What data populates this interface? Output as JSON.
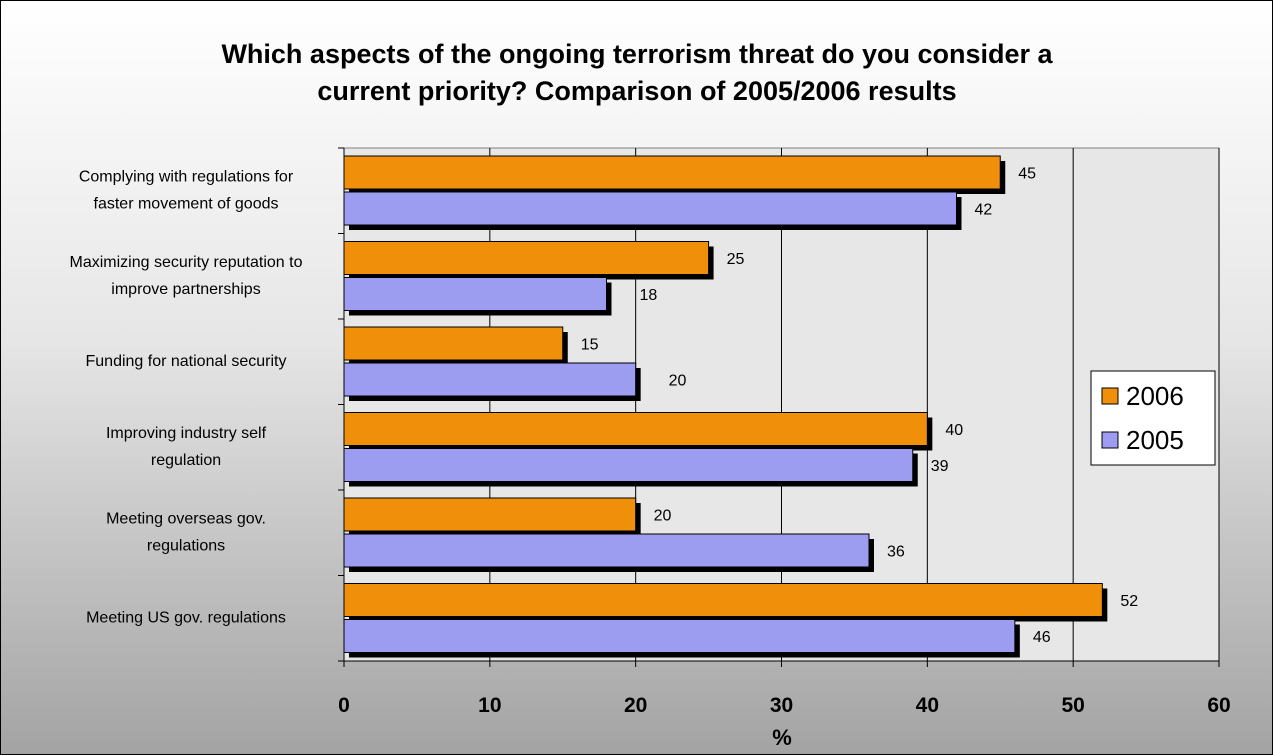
{
  "chart_data": {
    "type": "bar",
    "orientation": "horizontal",
    "title": [
      "Which aspects of the ongoing terrorism threat do you consider a",
      "current priority? Comparison of 2005/2006 results"
    ],
    "categories": [
      [
        "Complying with regulations for",
        "faster movement of goods"
      ],
      [
        "Maximizing security reputation to",
        "improve partnerships"
      ],
      [
        "Funding for national security"
      ],
      [
        "Improving industry self",
        "regulation"
      ],
      [
        "Meeting overseas gov.",
        "regulations"
      ],
      [
        "Meeting US gov. regulations"
      ]
    ],
    "series": [
      {
        "name": "2006",
        "values": [
          45,
          25,
          15,
          40,
          20,
          52
        ],
        "color": "#f0900a"
      },
      {
        "name": "2005",
        "values": [
          42,
          18,
          20,
          39,
          36,
          46
        ],
        "color": "#9c9cf0"
      }
    ],
    "xlabel": "%",
    "xlim": [
      0,
      60
    ],
    "xticks": [
      "0",
      "10",
      "20",
      "30",
      "40",
      "50",
      "60"
    ],
    "grid": true,
    "legend": "right"
  }
}
